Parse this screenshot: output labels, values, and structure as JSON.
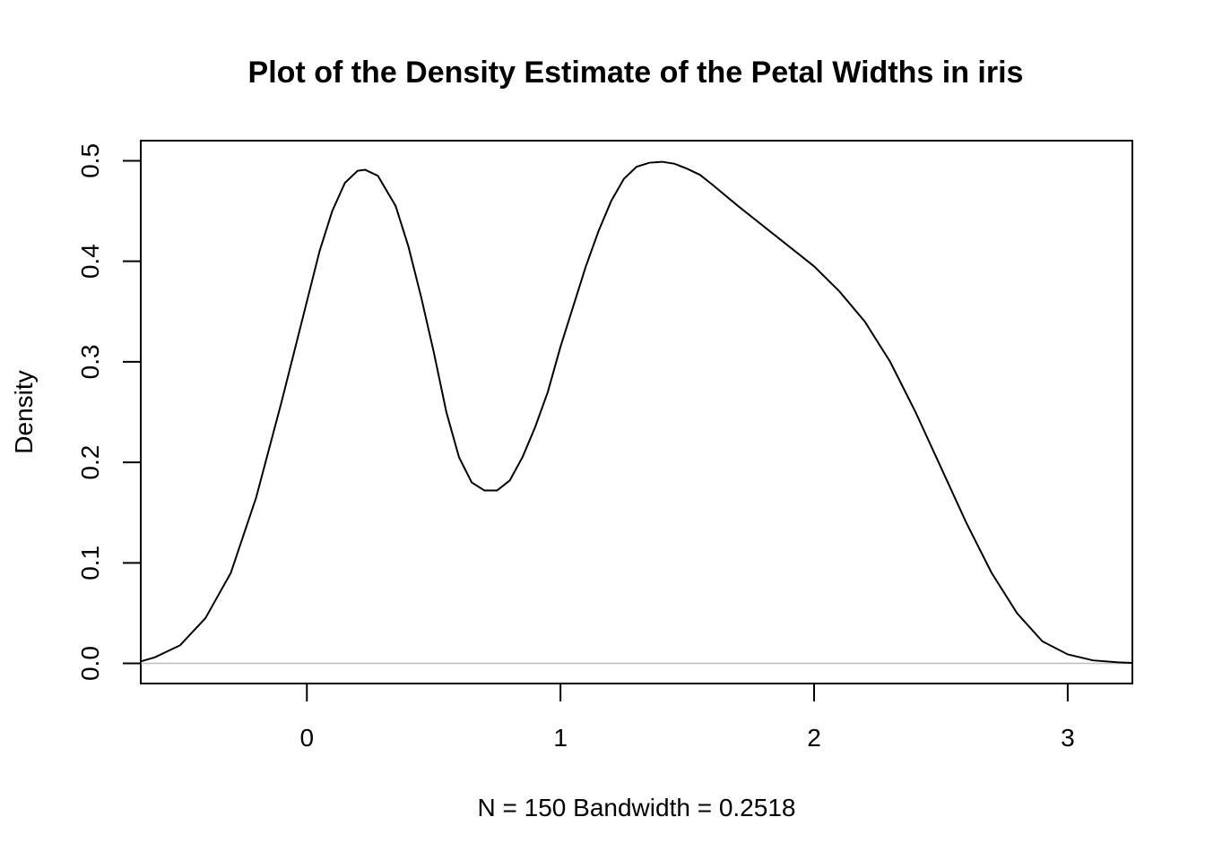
{
  "chart_data": {
    "type": "line",
    "title": "Plot of the Density Estimate of the Petal Widths in iris",
    "xlabel": "N = 150   Bandwidth = 0.2518",
    "ylabel": "Density",
    "xlim": [
      -0.655,
      3.255
    ],
    "ylim": [
      -0.02,
      0.52
    ],
    "x_ticks": [
      0,
      1,
      2,
      3
    ],
    "x_tick_labels": [
      "0",
      "1",
      "2",
      "3"
    ],
    "y_ticks": [
      0.0,
      0.1,
      0.2,
      0.3,
      0.4,
      0.5
    ],
    "y_tick_labels": [
      "0.0",
      "0.1",
      "0.2",
      "0.3",
      "0.4",
      "0.5"
    ],
    "grid": false,
    "zero_line": true,
    "colors": {
      "line": "#000000",
      "zero_line": "#bebebe"
    },
    "series": [
      {
        "x": [
          -0.655,
          -0.6,
          -0.5,
          -0.4,
          -0.3,
          -0.2,
          -0.1,
          0.0,
          0.05,
          0.1,
          0.15,
          0.2,
          0.23,
          0.28,
          0.35,
          0.4,
          0.45,
          0.5,
          0.55,
          0.6,
          0.65,
          0.7,
          0.75,
          0.8,
          0.85,
          0.9,
          0.95,
          1.0,
          1.05,
          1.1,
          1.15,
          1.2,
          1.25,
          1.3,
          1.35,
          1.4,
          1.45,
          1.5,
          1.55,
          1.6,
          1.7,
          1.8,
          1.9,
          2.0,
          2.1,
          2.2,
          2.3,
          2.4,
          2.5,
          2.6,
          2.7,
          2.8,
          2.9,
          3.0,
          3.1,
          3.2,
          3.255
        ],
        "y": [
          0.002,
          0.006,
          0.018,
          0.045,
          0.09,
          0.165,
          0.26,
          0.36,
          0.41,
          0.45,
          0.478,
          0.49,
          0.491,
          0.485,
          0.455,
          0.415,
          0.365,
          0.31,
          0.25,
          0.205,
          0.18,
          0.172,
          0.172,
          0.182,
          0.205,
          0.235,
          0.27,
          0.315,
          0.355,
          0.395,
          0.43,
          0.46,
          0.482,
          0.494,
          0.498,
          0.499,
          0.497,
          0.492,
          0.486,
          0.476,
          0.455,
          0.435,
          0.415,
          0.395,
          0.37,
          0.34,
          0.3,
          0.25,
          0.195,
          0.14,
          0.09,
          0.05,
          0.022,
          0.009,
          0.003,
          0.001,
          0.0005
        ]
      }
    ]
  }
}
